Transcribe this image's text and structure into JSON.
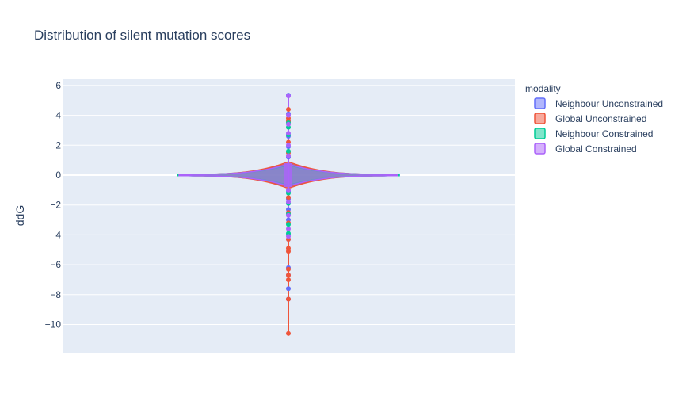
{
  "chart_data": {
    "type": "violin",
    "title": "Distribution of silent mutation scores",
    "xlabel": "",
    "ylabel": "ddG",
    "ylim": [
      -11.9,
      6.3
    ],
    "yticks": [
      6,
      4,
      2,
      0,
      -2,
      -4,
      -6,
      -8,
      -10
    ],
    "ytick_labels": [
      "6",
      "4",
      "2",
      "0",
      "−2",
      "−4",
      "−6",
      "−8",
      "−10"
    ],
    "grid": true,
    "legend_title": "modality",
    "legend_position": "right",
    "series": [
      {
        "name": "Neighbour Unconstrained",
        "color": "#636efa",
        "fill": "#636efa",
        "outlier_points": [
          5.35,
          4.1,
          3.6,
          2.6,
          1.9,
          1.2,
          -1.1,
          -1.6,
          -2.3,
          -3.0,
          -4.0,
          -4.3,
          -6.2,
          -6.7,
          -7.6,
          -8.3
        ],
        "max_density_halfwidth_ddg": 0.0
      },
      {
        "name": "Global Unconstrained",
        "color": "#ef553b",
        "fill": "#ef553b",
        "outlier_points": [
          4.4,
          3.8,
          3.6,
          2.2,
          1.5,
          -1.5,
          -2.5,
          -3.2,
          -4.3,
          -4.9,
          -5.1,
          -6.3,
          -6.7,
          -7.0,
          -8.3,
          -10.6
        ],
        "min": -10.75,
        "max": 4.4
      },
      {
        "name": "Neighbour Constrained",
        "color": "#00cc96",
        "fill": "#00cc96",
        "outlier_points": [
          3.5,
          3.2,
          2.7,
          1.6,
          -1.2,
          -1.9,
          -2.6,
          -3.3,
          -3.9
        ],
        "min": -4.0,
        "max": 3.5
      },
      {
        "name": "Global Constrained",
        "color": "#ab63fa",
        "fill": "#ab63fa",
        "outlier_points": [
          5.3,
          4.0,
          3.4,
          2.8,
          2.0,
          1.3,
          -1.0,
          -1.8,
          -2.7,
          -3.6,
          -4.1
        ],
        "min": -4.2,
        "max": 5.3
      }
    ]
  }
}
